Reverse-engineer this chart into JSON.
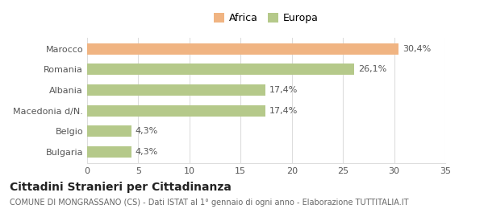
{
  "categories": [
    "Bulgaria",
    "Belgio",
    "Macedonia d/N.",
    "Albania",
    "Romania",
    "Marocco"
  ],
  "values": [
    4.3,
    4.3,
    17.4,
    17.4,
    26.1,
    30.4
  ],
  "labels": [
    "4,3%",
    "4,3%",
    "17,4%",
    "17,4%",
    "26,1%",
    "30,4%"
  ],
  "colors": [
    "#b5c98a",
    "#b5c98a",
    "#b5c98a",
    "#b5c98a",
    "#b5c98a",
    "#f0b482"
  ],
  "legend": [
    {
      "label": "Africa",
      "color": "#f0b482"
    },
    {
      "label": "Europa",
      "color": "#b5c98a"
    }
  ],
  "xlim": [
    0,
    35
  ],
  "xticks": [
    0,
    5,
    10,
    15,
    20,
    25,
    30,
    35
  ],
  "title": "Cittadini Stranieri per Cittadinanza",
  "subtitle": "COMUNE DI MONGRASSANO (CS) - Dati ISTAT al 1° gennaio di ogni anno - Elaborazione TUTTITALIA.IT",
  "background_color": "#ffffff",
  "grid_color": "#dddddd",
  "bar_height": 0.55,
  "label_fontsize": 8.0,
  "ytick_fontsize": 8.0,
  "xtick_fontsize": 8.0,
  "title_fontsize": 10.0,
  "subtitle_fontsize": 7.0
}
